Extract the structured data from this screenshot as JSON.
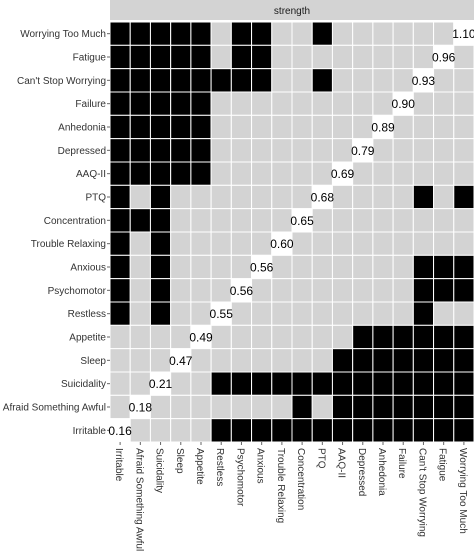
{
  "chart_data": {
    "type": "heatmap",
    "title": "strength",
    "xlabel": "",
    "ylabel": "",
    "legend": "none",
    "grid": true,
    "colors": {
      "cell_on": "#000000",
      "cell_off": "#d3d3d3",
      "diagonal": "#ffffff",
      "grid": "#ffffff",
      "header_bg": "#d3d3d3",
      "text": "#333333"
    },
    "x_categories": [
      "Irritable",
      "Afraid Something Awful",
      "Suicidality",
      "Sleep",
      "Appetite",
      "Restless",
      "Psychomotor",
      "Anxious",
      "Trouble Relaxing",
      "Concentration",
      "PTQ",
      "AAQ-II",
      "Depressed",
      "Anhedonia",
      "Failure",
      "Can't Stop Worrying",
      "Fatigue",
      "Worrying Too Much"
    ],
    "y_categories": [
      "Worrying Too Much",
      "Fatigue",
      "Can't Stop Worrying",
      "Failure",
      "Anhedonia",
      "Depressed",
      "AAQ-II",
      "PTQ",
      "Concentration",
      "Trouble Relaxing",
      "Anxious",
      "Psychomotor",
      "Restless",
      "Appetite",
      "Sleep",
      "Suicidality",
      "Afraid Something Awful",
      "Irritable"
    ],
    "strength": [
      1.1,
      0.96,
      0.93,
      0.9,
      0.89,
      0.79,
      0.69,
      0.68,
      0.65,
      0.6,
      0.56,
      0.56,
      0.55,
      0.49,
      0.47,
      0.21,
      0.18,
      0.16
    ],
    "strength_labels": [
      "1.10",
      "0.96",
      "0.93",
      "0.90",
      "0.89",
      "0.79",
      "0.69",
      "0.68",
      "0.65",
      "0.60",
      "0.56",
      "0.56",
      "0.55",
      "0.49",
      "0.47",
      "0.21",
      "0.18",
      "0.16"
    ],
    "matrix": [
      [
        1,
        1,
        1,
        1,
        1,
        0,
        1,
        1,
        0,
        0,
        1,
        0,
        0,
        0,
        0,
        0,
        0,
        null
      ],
      [
        1,
        1,
        1,
        1,
        1,
        0,
        1,
        1,
        0,
        0,
        0,
        0,
        0,
        0,
        0,
        0,
        null,
        0
      ],
      [
        1,
        1,
        1,
        1,
        1,
        1,
        1,
        1,
        0,
        0,
        1,
        0,
        0,
        0,
        0,
        null,
        0,
        0
      ],
      [
        1,
        1,
        1,
        1,
        1,
        0,
        0,
        0,
        0,
        0,
        0,
        0,
        0,
        0,
        null,
        0,
        0,
        0
      ],
      [
        1,
        1,
        1,
        1,
        1,
        0,
        0,
        0,
        0,
        0,
        0,
        0,
        0,
        null,
        0,
        0,
        0,
        0
      ],
      [
        1,
        1,
        1,
        1,
        1,
        0,
        0,
        0,
        0,
        0,
        0,
        0,
        null,
        0,
        0,
        0,
        0,
        0
      ],
      [
        1,
        1,
        1,
        1,
        1,
        0,
        0,
        0,
        0,
        0,
        0,
        null,
        0,
        0,
        0,
        0,
        0,
        0
      ],
      [
        1,
        0,
        1,
        0,
        0,
        0,
        0,
        0,
        0,
        0,
        null,
        0,
        0,
        0,
        0,
        1,
        0,
        1
      ],
      [
        1,
        1,
        1,
        0,
        0,
        0,
        0,
        0,
        0,
        null,
        0,
        0,
        0,
        0,
        0,
        0,
        0,
        0
      ],
      [
        1,
        0,
        1,
        0,
        0,
        0,
        0,
        0,
        null,
        0,
        0,
        0,
        0,
        0,
        0,
        0,
        0,
        0
      ],
      [
        1,
        0,
        1,
        0,
        0,
        0,
        0,
        null,
        0,
        0,
        0,
        0,
        0,
        0,
        0,
        1,
        1,
        1
      ],
      [
        1,
        0,
        1,
        0,
        0,
        0,
        null,
        0,
        0,
        0,
        0,
        0,
        0,
        0,
        0,
        1,
        1,
        1
      ],
      [
        1,
        0,
        1,
        0,
        0,
        null,
        0,
        0,
        0,
        0,
        0,
        0,
        0,
        0,
        0,
        1,
        0,
        0
      ],
      [
        0,
        0,
        0,
        0,
        null,
        0,
        0,
        0,
        0,
        0,
        0,
        0,
        1,
        1,
        1,
        1,
        1,
        1
      ],
      [
        0,
        0,
        0,
        null,
        0,
        0,
        0,
        0,
        0,
        0,
        0,
        1,
        1,
        1,
        1,
        1,
        1,
        1
      ],
      [
        0,
        0,
        null,
        0,
        0,
        1,
        1,
        1,
        1,
        1,
        1,
        1,
        1,
        1,
        1,
        1,
        1,
        1
      ],
      [
        0,
        null,
        0,
        0,
        0,
        0,
        0,
        0,
        0,
        1,
        0,
        1,
        1,
        1,
        1,
        1,
        1,
        1
      ],
      [
        null,
        0,
        0,
        0,
        0,
        1,
        1,
        1,
        1,
        1,
        1,
        1,
        1,
        1,
        1,
        1,
        1,
        1
      ]
    ]
  }
}
